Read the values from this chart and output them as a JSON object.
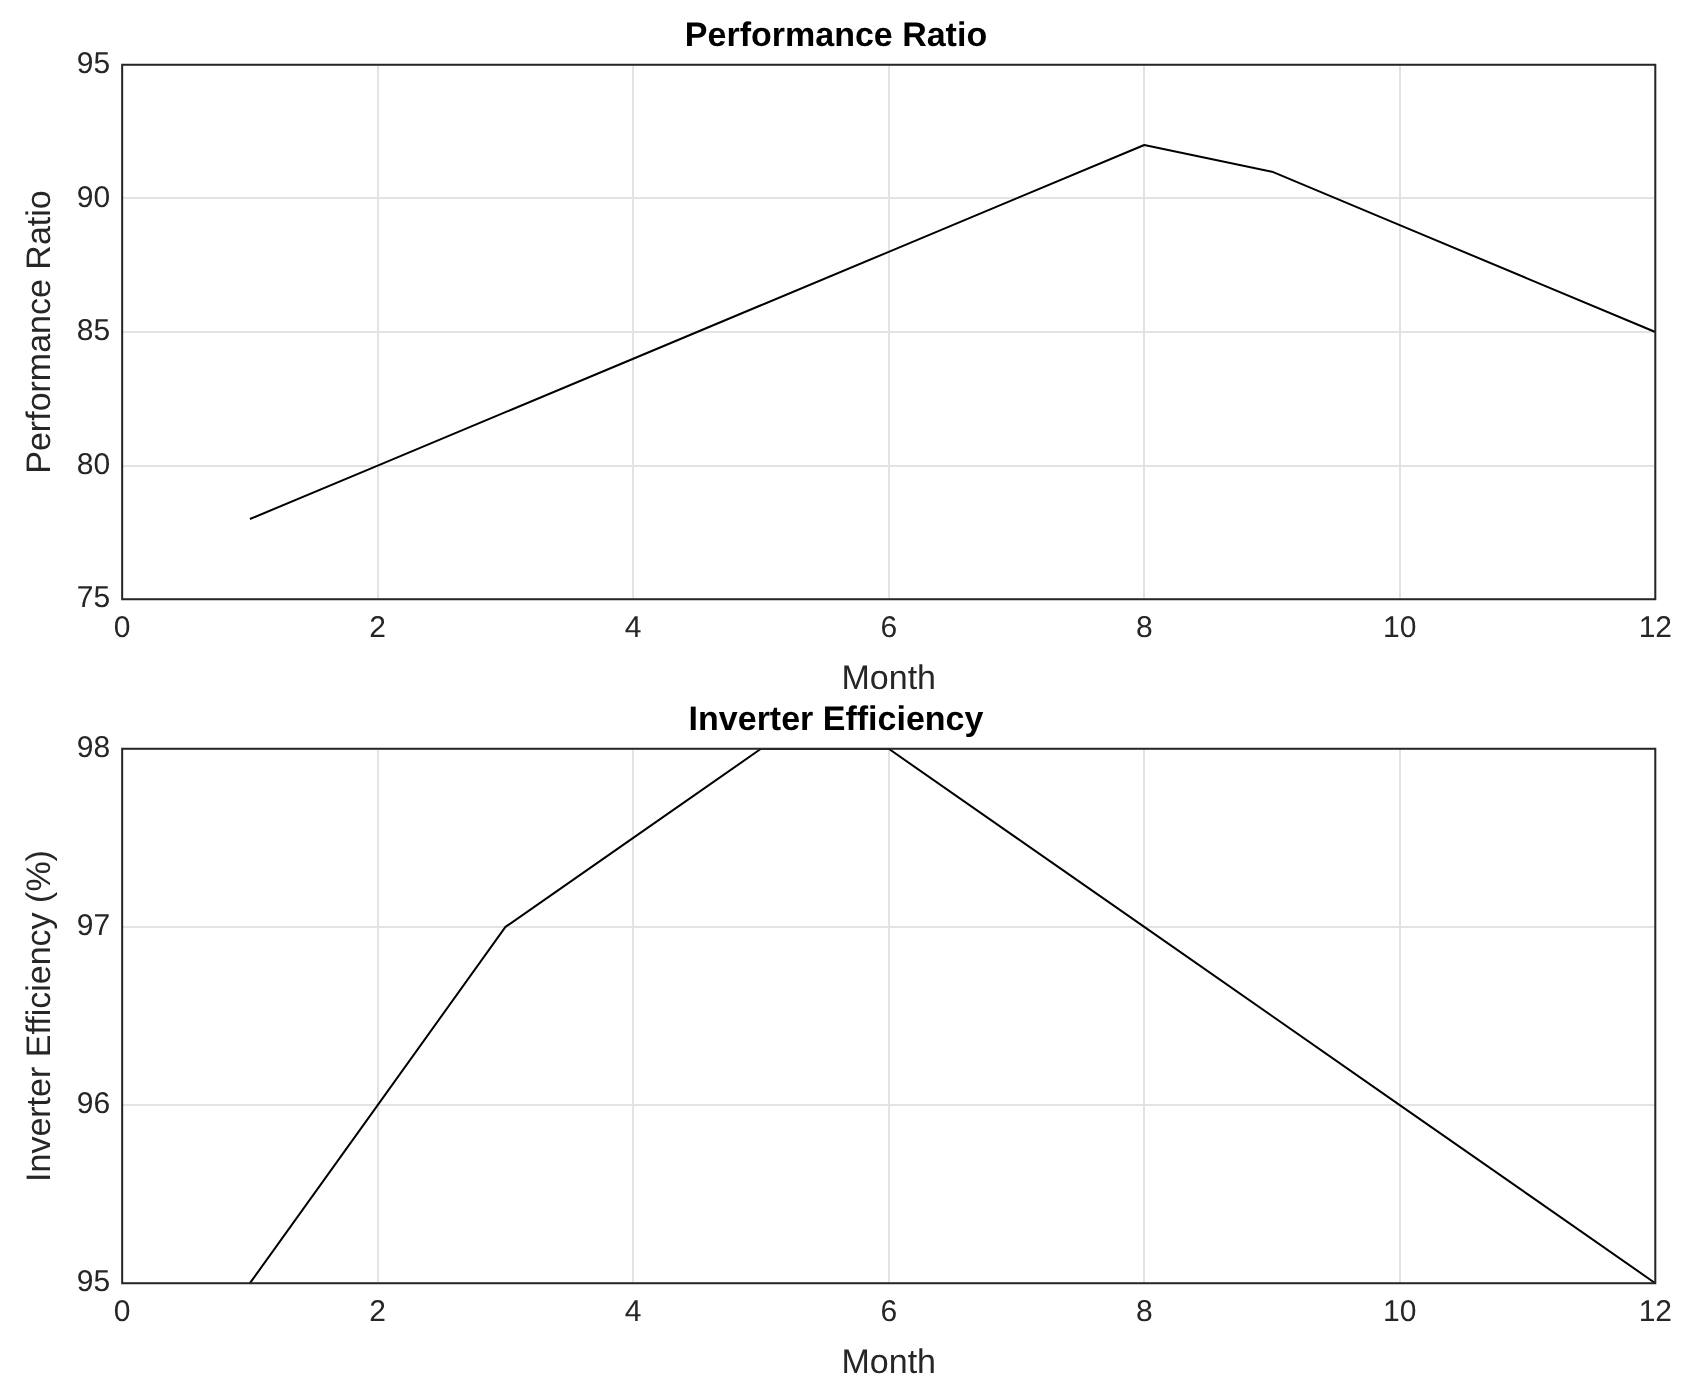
{
  "chart_data": [
    {
      "type": "line",
      "title": "Performance Ratio",
      "xlabel": "Month",
      "ylabel": "Performance Ratio",
      "x": [
        1,
        2,
        3,
        4,
        5,
        6,
        7,
        8,
        9,
        10,
        11,
        12
      ],
      "series": [
        {
          "color": "#000000",
          "values": [
            78,
            80,
            82,
            84,
            86,
            88,
            90,
            92,
            91,
            89,
            87,
            85
          ]
        }
      ],
      "xlim": [
        0,
        12
      ],
      "xticks": [
        0,
        2,
        4,
        6,
        8,
        10,
        12
      ],
      "ylim": [
        75,
        95
      ],
      "yticks": [
        75,
        80,
        85,
        90,
        95
      ],
      "grid": true,
      "legend": false,
      "marker": "none",
      "line_style": "solid"
    },
    {
      "type": "line",
      "title": "Inverter Efficiency",
      "xlabel": "Month",
      "ylabel": "Inverter Efficiency (%)",
      "x": [
        1,
        2,
        3,
        4,
        5,
        6,
        7,
        8,
        9,
        10,
        11,
        12
      ],
      "series": [
        {
          "color": "#000000",
          "values": [
            95,
            96,
            97,
            97.5,
            98,
            98,
            97.5,
            97,
            96.5,
            96,
            95.5,
            95
          ]
        }
      ],
      "xlim": [
        0,
        12
      ],
      "xticks": [
        0,
        2,
        4,
        6,
        8,
        10,
        12
      ],
      "ylim": [
        95,
        98
      ],
      "yticks": [
        95,
        96,
        97,
        98
      ],
      "grid": true,
      "legend": false,
      "marker": "none",
      "line_style": "solid"
    }
  ]
}
